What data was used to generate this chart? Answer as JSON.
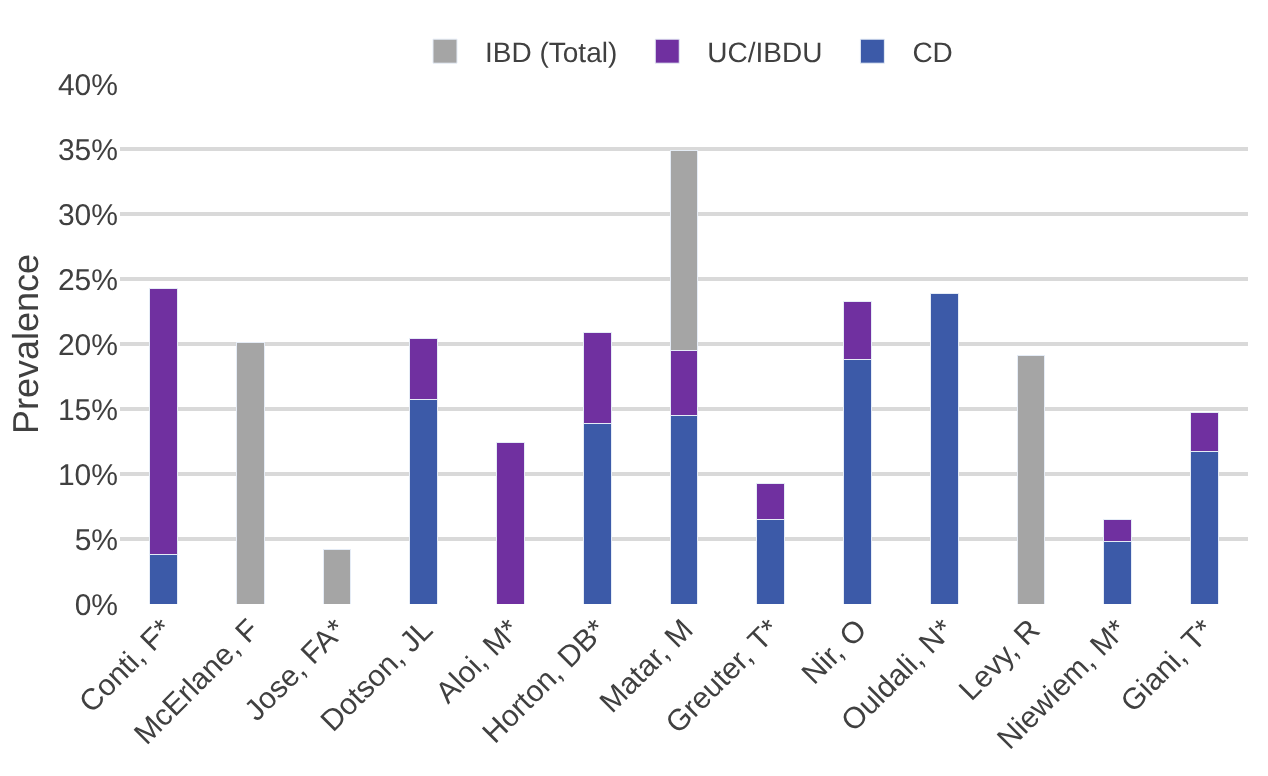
{
  "chart_data": {
    "type": "bar",
    "stacked": true,
    "ylabel": "Prevalence",
    "categories": [
      "Conti, F*",
      "McErlane, F",
      "Jose, FA*",
      "Dotson, JL",
      "Aloi, M*",
      "Horton, DB*",
      "Matar, M",
      "Greuter, T*",
      "Nir, O",
      "Ouldali, N*",
      "Levy, R",
      "Niewiem, M*",
      "Giani, T*"
    ],
    "series": [
      {
        "name": "CD",
        "color": "#3c5aa8",
        "values": [
          3.8,
          null,
          null,
          15.7,
          null,
          13.9,
          14.5,
          6.5,
          18.8,
          23.9,
          null,
          4.8,
          11.7
        ]
      },
      {
        "name": "UC/IBDU",
        "color": "#7030a0",
        "values": [
          20.5,
          null,
          null,
          4.7,
          12.4,
          7.0,
          5.0,
          2.8,
          4.5,
          null,
          null,
          1.7,
          3.0
        ]
      },
      {
        "name": "IBD (Total)",
        "color": "#a5a5a5",
        "values": [
          null,
          20.1,
          4.2,
          null,
          null,
          null,
          15.4,
          null,
          null,
          null,
          19.1,
          null,
          null
        ]
      }
    ],
    "ylim": [
      0,
      40
    ],
    "yticks": [
      {
        "value": 0,
        "label": "0%"
      },
      {
        "value": 5,
        "label": "5%"
      },
      {
        "value": 10,
        "label": "10%"
      },
      {
        "value": 15,
        "label": "15%"
      },
      {
        "value": 20,
        "label": "20%"
      },
      {
        "value": 25,
        "label": "25%"
      },
      {
        "value": 30,
        "label": "30%"
      },
      {
        "value": 35,
        "label": "35%"
      },
      {
        "value": 40,
        "label": "40%"
      }
    ],
    "grid": "y",
    "legend": "top"
  }
}
